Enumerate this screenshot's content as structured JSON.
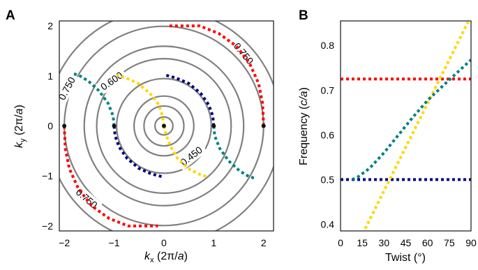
{
  "chart_data": [
    {
      "panel": "A",
      "type": "line",
      "subtype": "contour-with-dotted-curves",
      "xlabel": "k_x (2π/a)",
      "ylabel": "k_y (2π/a)",
      "xlim": [
        -2.1,
        2.2
      ],
      "ylim": [
        -2.1,
        2.1
      ],
      "xticks": [
        -2,
        -1,
        0,
        1,
        2
      ],
      "yticks": [
        -2,
        -1,
        0,
        1,
        2
      ],
      "xtick_labels": [
        "−2",
        "−1",
        "0",
        "1",
        "2"
      ],
      "ytick_labels": [
        "−2",
        "−1",
        "0",
        "1",
        "2"
      ],
      "grid": false,
      "contour_color": "#808080",
      "contour_radii": [
        0.18,
        0.4,
        0.6,
        0.95,
        1.35,
        1.6,
        2.0,
        2.35
      ],
      "contour_labels": [
        {
          "text": "0.750",
          "x": 1.6,
          "y": 1.45,
          "angle": 50
        },
        {
          "text": "0.600",
          "x": -1.05,
          "y": 0.9,
          "angle": -35
        },
        {
          "text": "0.450",
          "x": 0.55,
          "y": -0.6,
          "angle": -38
        },
        {
          "text": "0.750",
          "x": -1.95,
          "y": 0.75,
          "angle": -62
        },
        {
          "text": "0.750",
          "x": -1.55,
          "y": -1.45,
          "angle": 40
        }
      ],
      "series": [
        {
          "color": "#ffd700",
          "x": [
            0.0,
            -0.03,
            -0.1,
            -0.28,
            -0.52,
            -0.78,
            -0.95
          ],
          "y": [
            0.0,
            0.2,
            0.42,
            0.65,
            0.85,
            0.97,
            1.02
          ]
        },
        {
          "color": "#ffd700",
          "x": [
            0.0,
            0.05,
            0.14,
            0.28,
            0.5,
            0.72,
            0.88
          ],
          "y": [
            0.0,
            -0.2,
            -0.42,
            -0.66,
            -0.86,
            -0.97,
            -1.02
          ]
        },
        {
          "color": "#000080",
          "x": [
            1.0,
            0.98,
            0.9,
            0.74,
            0.5,
            0.24,
            0.02
          ],
          "y": [
            0.0,
            0.2,
            0.42,
            0.65,
            0.85,
            0.96,
            1.02
          ]
        },
        {
          "color": "#000080",
          "x": [
            -1.0,
            -0.98,
            -0.9,
            -0.74,
            -0.5,
            -0.25,
            -0.02
          ],
          "y": [
            0.0,
            -0.2,
            -0.42,
            -0.65,
            -0.85,
            -0.96,
            -1.02
          ]
        },
        {
          "color": "#008080",
          "x": [
            -1.0,
            -1.02,
            -1.12,
            -1.3,
            -1.52,
            -1.72,
            -1.85
          ],
          "y": [
            0.0,
            0.2,
            0.45,
            0.7,
            0.9,
            1.02,
            1.05
          ]
        },
        {
          "color": "#008080",
          "x": [
            1.0,
            1.02,
            1.12,
            1.3,
            1.52,
            1.72,
            1.85
          ],
          "y": [
            0.0,
            -0.2,
            -0.45,
            -0.7,
            -0.9,
            -1.02,
            -1.05
          ]
        },
        {
          "color": "#ff0000",
          "x": [
            2.0,
            1.98,
            1.9,
            1.72,
            1.45,
            1.1,
            0.72,
            0.08
          ],
          "y": [
            0.0,
            0.45,
            0.85,
            1.25,
            1.6,
            1.85,
            2.0,
            2.0
          ]
        },
        {
          "color": "#ff0000",
          "x": [
            -2.0,
            -1.98,
            -1.9,
            -1.72,
            -1.45,
            -1.1,
            -0.72,
            -0.12
          ],
          "y": [
            0.0,
            -0.45,
            -0.85,
            -1.25,
            -1.6,
            -1.85,
            -2.0,
            -2.0
          ]
        }
      ],
      "markers": [
        {
          "x": 0,
          "y": 0,
          "color": "#111111"
        },
        {
          "x": 1,
          "y": 0,
          "color": "#111111"
        },
        {
          "x": -1,
          "y": 0,
          "color": "#111111"
        },
        {
          "x": 2,
          "y": 0,
          "color": "#111111"
        },
        {
          "x": -2,
          "y": 0,
          "color": "#111111"
        }
      ]
    },
    {
      "panel": "B",
      "type": "line",
      "subtype": "dotted",
      "xlabel": "Twist (°)",
      "ylabel": "Frequency (c/a)",
      "xlim": [
        0,
        90
      ],
      "ylim": [
        0.385,
        0.855
      ],
      "xticks": [
        0,
        15,
        30,
        45,
        60,
        75,
        90
      ],
      "yticks": [
        0.4,
        0.5,
        0.6,
        0.7,
        0.8
      ],
      "xtick_labels": [
        "0",
        "15",
        "30",
        "45",
        "60",
        "75",
        "90"
      ],
      "ytick_labels": [
        "0.4",
        "0.5",
        "0.6",
        "0.7",
        "0.8"
      ],
      "grid": false,
      "series": [
        {
          "color": "#000080",
          "x": [
            0,
            90
          ],
          "y": [
            0.5,
            0.5
          ]
        },
        {
          "color": "#ff0000",
          "x": [
            0,
            90
          ],
          "y": [
            0.725,
            0.725
          ]
        },
        {
          "color": "#ffd700",
          "x": [
            17,
            88
          ],
          "y": [
            0.39,
            0.853
          ]
        },
        {
          "color": "#008080",
          "x": [
            8,
            12,
            20,
            30,
            40,
            50,
            60,
            70,
            80,
            90
          ],
          "y": [
            0.5,
            0.506,
            0.525,
            0.56,
            0.6,
            0.64,
            0.677,
            0.708,
            0.738,
            0.768
          ]
        }
      ]
    }
  ],
  "panel_labels": [
    "A",
    "B"
  ],
  "axis_label_parts": {
    "A_x": {
      "var": "k",
      "sub": "x",
      "unit": " (2π/",
      "unit_var": "a",
      "close": ")"
    },
    "A_y": {
      "var": "k",
      "sub": "y",
      "unit": " (2π/",
      "unit_var": "a",
      "close": ")"
    },
    "B_x": {
      "text": "Twist (°)"
    },
    "B_y": {
      "pre": "Frequency (",
      "var": "c/a",
      "close": ")"
    }
  }
}
